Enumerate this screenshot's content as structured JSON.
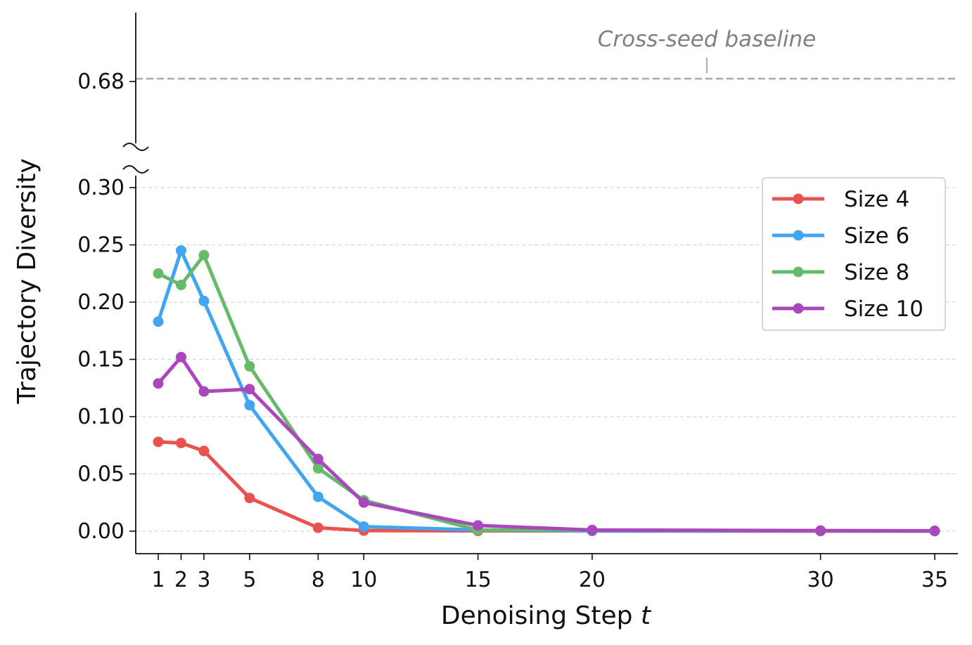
{
  "chart_data": {
    "type": "line",
    "xlabel": "Denoising Step",
    "xlabel_var": "t",
    "ylabel": "Trajectory Diversity",
    "x": [
      1,
      2,
      3,
      5,
      8,
      10,
      15,
      20,
      30,
      35
    ],
    "x_ticks": [
      1,
      2,
      3,
      5,
      8,
      10,
      15,
      20,
      30,
      35
    ],
    "y_ticks": [
      "0.00",
      "0.05",
      "0.10",
      "0.15",
      "0.20",
      "0.25",
      "0.30"
    ],
    "y_upper_tick": "0.68",
    "ylim": [
      -0.02,
      0.31
    ],
    "broken_axis": true,
    "grid": "horizontal dashed",
    "legend_position": "right",
    "series": [
      {
        "name": "Size 4",
        "color": "#e8524f",
        "values": [
          0.078,
          0.077,
          0.07,
          0.029,
          0.003,
          0.0005,
          0.0003,
          0.0002,
          0.0001,
          0.0001
        ]
      },
      {
        "name": "Size 6",
        "color": "#42a5f0",
        "values": [
          0.183,
          0.245,
          0.201,
          0.11,
          0.03,
          0.004,
          0.001,
          0.0003,
          0.0002,
          0.0001
        ]
      },
      {
        "name": "Size 8",
        "color": "#66bb6a",
        "values": [
          0.225,
          0.215,
          0.241,
          0.144,
          0.055,
          0.027,
          0.001,
          0.001,
          0.0003,
          0.0002
        ]
      },
      {
        "name": "Size 10",
        "color": "#ab47bc",
        "values": [
          0.129,
          0.152,
          0.122,
          0.124,
          0.063,
          0.025,
          0.005,
          0.001,
          0.0005,
          0.0003
        ]
      }
    ],
    "baseline": {
      "label": "Cross-seed baseline",
      "value": 0.68,
      "color": "#aaaaaa"
    }
  }
}
